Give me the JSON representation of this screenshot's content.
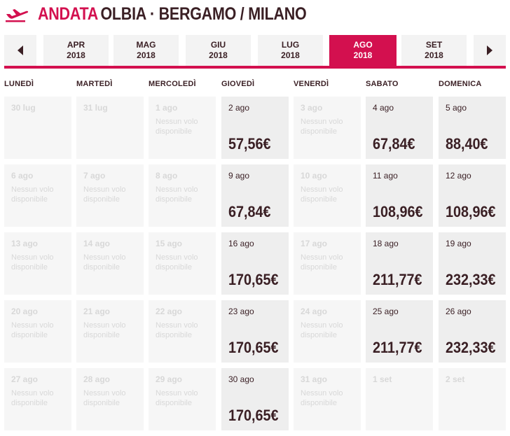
{
  "header": {
    "direction_label": "ANDATA",
    "route": "OLBIA · BERGAMO / MILANO"
  },
  "months": [
    {
      "name": "APR",
      "year": "2018",
      "active": false
    },
    {
      "name": "MAG",
      "year": "2018",
      "active": false
    },
    {
      "name": "GIU",
      "year": "2018",
      "active": false
    },
    {
      "name": "LUG",
      "year": "2018",
      "active": false
    },
    {
      "name": "AGO",
      "year": "2018",
      "active": true
    },
    {
      "name": "SET",
      "year": "2018",
      "active": false
    }
  ],
  "weekdays": [
    "LUNEDÌ",
    "MARTEDÌ",
    "MERCOLEDÌ",
    "GIOVEDÌ",
    "VENERDÌ",
    "SABATO",
    "DOMENICA"
  ],
  "colors": {
    "accent": "#d3104f",
    "text": "#3a1f24",
    "available_bg": "#eeeeee",
    "unavailable_bg": "#f6f6f6"
  },
  "calendar": [
    [
      {
        "date": "30 lug",
        "msg": "",
        "price": ""
      },
      {
        "date": "31 lug",
        "msg": "",
        "price": ""
      },
      {
        "date": "1 ago",
        "msg": "Nessun volo disponibile",
        "price": ""
      },
      {
        "date": "2 ago",
        "msg": "",
        "price": "57,56€"
      },
      {
        "date": "3 ago",
        "msg": "Nessun volo disponibile",
        "price": ""
      },
      {
        "date": "4 ago",
        "msg": "",
        "price": "67,84€"
      },
      {
        "date": "5 ago",
        "msg": "",
        "price": "88,40€"
      }
    ],
    [
      {
        "date": "6 ago",
        "msg": "Nessun volo disponibile",
        "price": ""
      },
      {
        "date": "7 ago",
        "msg": "Nessun volo disponibile",
        "price": ""
      },
      {
        "date": "8 ago",
        "msg": "Nessun volo disponibile",
        "price": ""
      },
      {
        "date": "9 ago",
        "msg": "",
        "price": "67,84€"
      },
      {
        "date": "10 ago",
        "msg": "Nessun volo disponibile",
        "price": ""
      },
      {
        "date": "11 ago",
        "msg": "",
        "price": "108,96€"
      },
      {
        "date": "12 ago",
        "msg": "",
        "price": "108,96€"
      }
    ],
    [
      {
        "date": "13 ago",
        "msg": "Nessun volo disponibile",
        "price": ""
      },
      {
        "date": "14 ago",
        "msg": "Nessun volo disponibile",
        "price": ""
      },
      {
        "date": "15 ago",
        "msg": "Nessun volo disponibile",
        "price": ""
      },
      {
        "date": "16 ago",
        "msg": "",
        "price": "170,65€"
      },
      {
        "date": "17 ago",
        "msg": "Nessun volo disponibile",
        "price": ""
      },
      {
        "date": "18 ago",
        "msg": "",
        "price": "211,77€"
      },
      {
        "date": "19 ago",
        "msg": "",
        "price": "232,33€"
      }
    ],
    [
      {
        "date": "20 ago",
        "msg": "Nessun volo disponibile",
        "price": ""
      },
      {
        "date": "21 ago",
        "msg": "Nessun volo disponibile",
        "price": ""
      },
      {
        "date": "22 ago",
        "msg": "Nessun volo disponibile",
        "price": ""
      },
      {
        "date": "23 ago",
        "msg": "",
        "price": "170,65€"
      },
      {
        "date": "24 ago",
        "msg": "Nessun volo disponibile",
        "price": ""
      },
      {
        "date": "25 ago",
        "msg": "",
        "price": "211,77€"
      },
      {
        "date": "26 ago",
        "msg": "",
        "price": "232,33€"
      }
    ],
    [
      {
        "date": "27 ago",
        "msg": "Nessun volo disponibile",
        "price": ""
      },
      {
        "date": "28 ago",
        "msg": "Nessun volo disponibile",
        "price": ""
      },
      {
        "date": "29 ago",
        "msg": "Nessun volo disponibile",
        "price": ""
      },
      {
        "date": "30 ago",
        "msg": "",
        "price": "170,65€"
      },
      {
        "date": "31 ago",
        "msg": "Nessun volo disponibile",
        "price": ""
      },
      {
        "date": "1 set",
        "msg": "",
        "price": ""
      },
      {
        "date": "2 set",
        "msg": "",
        "price": ""
      }
    ]
  ]
}
